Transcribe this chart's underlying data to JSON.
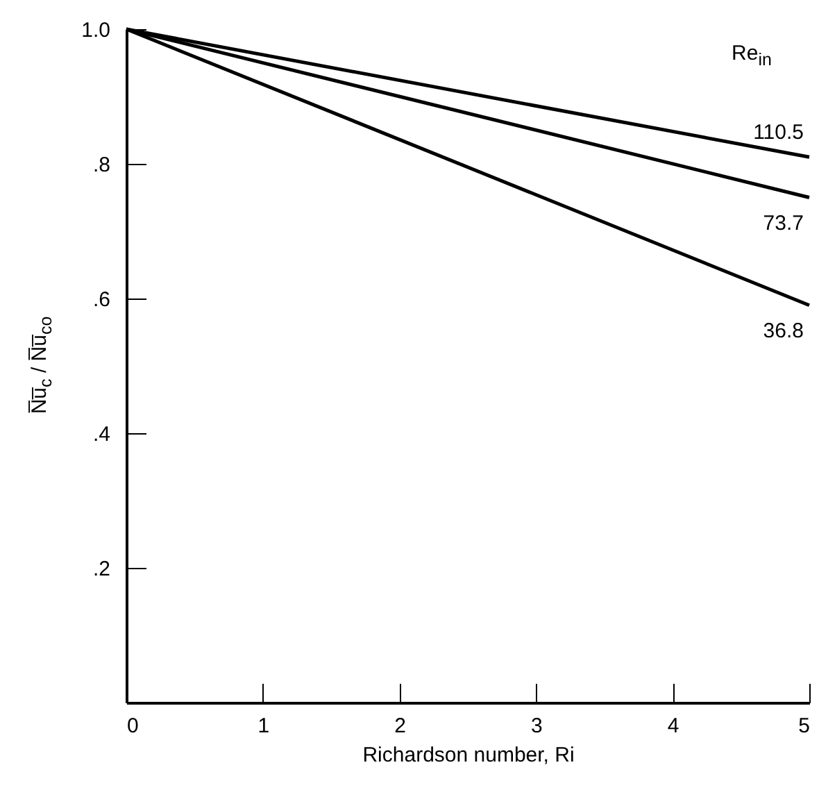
{
  "chart_data": {
    "type": "line",
    "xlabel": "Richardson number, Ri",
    "ylabel": "N̅u̅$_{c}$ / N̅u̅$_{co}$",
    "legend_title": "Re$_{in}$",
    "x": [
      0,
      5
    ],
    "series": [
      {
        "name": "110.5",
        "color": "#000000",
        "values": [
          1.0,
          0.81
        ]
      },
      {
        "name": "73.7",
        "color": "#000000",
        "values": [
          1.0,
          0.75
        ]
      },
      {
        "name": "36.8",
        "color": "#000000",
        "values": [
          1.0,
          0.59
        ]
      }
    ],
    "xlim": [
      0,
      5
    ],
    "xticks": [
      0,
      1,
      2,
      3,
      4,
      5
    ],
    "ylim": [
      0,
      1.0
    ],
    "yticks": [
      {
        "value": 0.2,
        "label": ".2"
      },
      {
        "value": 0.4,
        "label": ".4"
      },
      {
        "value": 0.6,
        "label": ".6"
      },
      {
        "value": 0.8,
        "label": ".8"
      },
      {
        "value": 1.0,
        "label": "1.0"
      }
    ],
    "grid": false,
    "marker": "none",
    "line_style": "solid"
  }
}
